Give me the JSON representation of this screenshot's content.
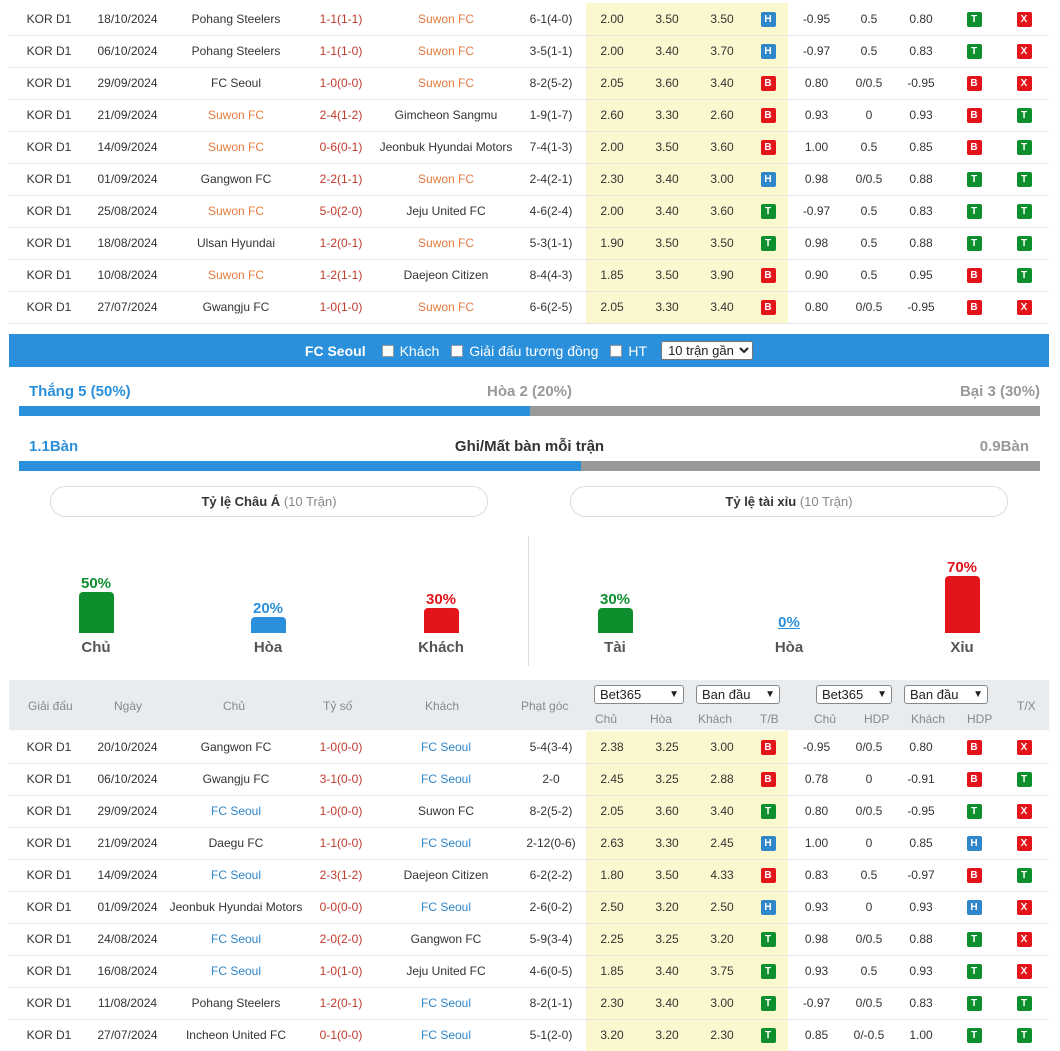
{
  "top_table": [
    {
      "league": "KOR D1",
      "date": "18/10/2024",
      "home": "Pohang Steelers",
      "score": "1-1(1-1)",
      "away": "Suwon FC",
      "corner": "6-1(4-0)",
      "o1": "2.00",
      "o2": "3.50",
      "o3": "3.50",
      "tb": "H",
      "ah1": "-0.95",
      "ah2": "0.5",
      "ah3": "0.80",
      "r1": "T",
      "r2": "X",
      "focus": "away"
    },
    {
      "league": "KOR D1",
      "date": "06/10/2024",
      "home": "Pohang Steelers",
      "score": "1-1(1-0)",
      "away": "Suwon FC",
      "corner": "3-5(1-1)",
      "o1": "2.00",
      "o2": "3.40",
      "o3": "3.70",
      "tb": "H",
      "ah1": "-0.97",
      "ah2": "0.5",
      "ah3": "0.83",
      "r1": "T",
      "r2": "X",
      "focus": "away"
    },
    {
      "league": "KOR D1",
      "date": "29/09/2024",
      "home": "FC Seoul",
      "score": "1-0(0-0)",
      "away": "Suwon FC",
      "corner": "8-2(5-2)",
      "o1": "2.05",
      "o2": "3.60",
      "o3": "3.40",
      "tb": "B",
      "ah1": "0.80",
      "ah2": "0/0.5",
      "ah3": "-0.95",
      "r1": "B",
      "r2": "X",
      "focus": "away"
    },
    {
      "league": "KOR D1",
      "date": "21/09/2024",
      "home": "Suwon FC",
      "score": "2-4(1-2)",
      "away": "Gimcheon Sangmu",
      "corner": "1-9(1-7)",
      "o1": "2.60",
      "o2": "3.30",
      "o3": "2.60",
      "tb": "B",
      "ah1": "0.93",
      "ah2": "0",
      "ah3": "0.93",
      "r1": "B",
      "r2": "T",
      "focus": "home"
    },
    {
      "league": "KOR D1",
      "date": "14/09/2024",
      "home": "Suwon FC",
      "score": "0-6(0-1)",
      "away": "Jeonbuk Hyundai Motors",
      "corner": "7-4(1-3)",
      "o1": "2.00",
      "o2": "3.50",
      "o3": "3.60",
      "tb": "B",
      "ah1": "1.00",
      "ah2": "0.5",
      "ah3": "0.85",
      "r1": "B",
      "r2": "T",
      "focus": "home"
    },
    {
      "league": "KOR D1",
      "date": "01/09/2024",
      "home": "Gangwon FC",
      "score": "2-2(1-1)",
      "away": "Suwon FC",
      "corner": "2-4(2-1)",
      "o1": "2.30",
      "o2": "3.40",
      "o3": "3.00",
      "tb": "H",
      "ah1": "0.98",
      "ah2": "0/0.5",
      "ah3": "0.88",
      "r1": "T",
      "r2": "T",
      "focus": "away"
    },
    {
      "league": "KOR D1",
      "date": "25/08/2024",
      "home": "Suwon FC",
      "score": "5-0(2-0)",
      "away": "Jeju United FC",
      "corner": "4-6(2-4)",
      "o1": "2.00",
      "o2": "3.40",
      "o3": "3.60",
      "tb": "T",
      "ah1": "-0.97",
      "ah2": "0.5",
      "ah3": "0.83",
      "r1": "T",
      "r2": "T",
      "focus": "home"
    },
    {
      "league": "KOR D1",
      "date": "18/08/2024",
      "home": "Ulsan Hyundai",
      "score": "1-2(0-1)",
      "away": "Suwon FC",
      "corner": "5-3(1-1)",
      "o1": "1.90",
      "o2": "3.50",
      "o3": "3.50",
      "tb": "T",
      "ah1": "0.98",
      "ah2": "0.5",
      "ah3": "0.88",
      "r1": "T",
      "r2": "T",
      "focus": "away"
    },
    {
      "league": "KOR D1",
      "date": "10/08/2024",
      "home": "Suwon FC",
      "score": "1-2(1-1)",
      "away": "Daejeon Citizen",
      "corner": "8-4(4-3)",
      "o1": "1.85",
      "o2": "3.50",
      "o3": "3.90",
      "tb": "B",
      "ah1": "0.90",
      "ah2": "0.5",
      "ah3": "0.95",
      "r1": "B",
      "r2": "T",
      "focus": "home"
    },
    {
      "league": "KOR D1",
      "date": "27/07/2024",
      "home": "Gwangju FC",
      "score": "1-0(1-0)",
      "away": "Suwon FC",
      "corner": "6-6(2-5)",
      "o1": "2.05",
      "o2": "3.30",
      "o3": "3.40",
      "tb": "B",
      "ah1": "0.80",
      "ah2": "0/0.5",
      "ah3": "-0.95",
      "r1": "B",
      "r2": "X",
      "focus": "away"
    }
  ],
  "filter_bar": {
    "team": "FC Seoul",
    "opt_away": "Khách",
    "opt_same_league": "Giải đấu tương đồng",
    "opt_ht": "HT",
    "select_value": "10 trận gần"
  },
  "summary": {
    "win": "Thắng 5 (50%)",
    "draw": "Hòa 2 (20%)",
    "loss": "Bại 3 (30%)",
    "win_fraction": 0.5,
    "goals_for": "1.1Bàn",
    "goals_title": "Ghi/Mất bàn mỗi trận",
    "goals_against": "0.9Bàn",
    "goals_fraction": 0.55
  },
  "pills": {
    "asian": "Tỷ lệ Châu Á",
    "asian_sub": "(10 Trận)",
    "ou": "Tỷ lệ tài xỉu",
    "ou_sub": "(10 Trận)"
  },
  "colors": {
    "green": "#0d8f2d",
    "blue": "#2a90dc",
    "red": "#e3141a"
  },
  "asian_bars": [
    {
      "pct": "50%",
      "label": "Chủ",
      "value": 50,
      "color": "green"
    },
    {
      "pct": "20%",
      "label": "Hòa",
      "value": 20,
      "color": "blue"
    },
    {
      "pct": "30%",
      "label": "Khách",
      "value": 30,
      "color": "red"
    }
  ],
  "ou_bars": [
    {
      "pct": "30%",
      "label": "Tài",
      "value": 30,
      "color": "green"
    },
    {
      "pct": "0%",
      "label": "Hòa",
      "value": 0,
      "color": "blue"
    },
    {
      "pct": "70%",
      "label": "Xỉu",
      "value": 70,
      "color": "red"
    }
  ],
  "bottom_header": {
    "league": "Giải đấu",
    "date": "Ngày",
    "home": "Chủ",
    "score": "Tỷ số",
    "away": "Khách",
    "corner": "Phạt góc",
    "sel1": "Bet365",
    "sel2": "Ban đầu",
    "sel3": "Bet365",
    "sel4": "Ban đầu",
    "c_home": "Chủ",
    "c_draw": "Hòa",
    "c_away": "Khách",
    "c_tb": "T/B",
    "c_home2": "Chủ",
    "c_hdp": "HDP",
    "c_away2": "Khách",
    "c_hdp2": "HDP",
    "c_tx": "T/X"
  },
  "bottom_table": [
    {
      "league": "KOR D1",
      "date": "20/10/2024",
      "home": "Gangwon FC",
      "score": "1-0(0-0)",
      "away": "FC Seoul",
      "corner": "5-4(3-4)",
      "o1": "2.38",
      "o2": "3.25",
      "o3": "3.00",
      "tb": "B",
      "ah1": "-0.95",
      "ah2": "0/0.5",
      "ah3": "0.80",
      "r1": "B",
      "r2": "X",
      "focus": "away"
    },
    {
      "league": "KOR D1",
      "date": "06/10/2024",
      "home": "Gwangju FC",
      "score": "3-1(0-0)",
      "away": "FC Seoul",
      "corner": "2-0",
      "o1": "2.45",
      "o2": "3.25",
      "o3": "2.88",
      "tb": "B",
      "ah1": "0.78",
      "ah2": "0",
      "ah3": "-0.91",
      "r1": "B",
      "r2": "T",
      "focus": "away"
    },
    {
      "league": "KOR D1",
      "date": "29/09/2024",
      "home": "FC Seoul",
      "score": "1-0(0-0)",
      "away": "Suwon FC",
      "corner": "8-2(5-2)",
      "o1": "2.05",
      "o2": "3.60",
      "o3": "3.40",
      "tb": "T",
      "ah1": "0.80",
      "ah2": "0/0.5",
      "ah3": "-0.95",
      "r1": "T",
      "r2": "X",
      "focus": "home"
    },
    {
      "league": "KOR D1",
      "date": "21/09/2024",
      "home": "Daegu FC",
      "score": "1-1(0-0)",
      "away": "FC Seoul",
      "corner": "2-12(0-6)",
      "o1": "2.63",
      "o2": "3.30",
      "o3": "2.45",
      "tb": "H",
      "ah1": "1.00",
      "ah2": "0",
      "ah3": "0.85",
      "r1": "H",
      "r2": "X",
      "focus": "away"
    },
    {
      "league": "KOR D1",
      "date": "14/09/2024",
      "home": "FC Seoul",
      "score": "2-3(1-2)",
      "away": "Daejeon Citizen",
      "corner": "6-2(2-2)",
      "o1": "1.80",
      "o2": "3.50",
      "o3": "4.33",
      "tb": "B",
      "ah1": "0.83",
      "ah2": "0.5",
      "ah3": "-0.97",
      "r1": "B",
      "r2": "T",
      "focus": "home"
    },
    {
      "league": "KOR D1",
      "date": "01/09/2024",
      "home": "Jeonbuk Hyundai Motors",
      "score": "0-0(0-0)",
      "away": "FC Seoul",
      "corner": "2-6(0-2)",
      "o1": "2.50",
      "o2": "3.20",
      "o3": "2.50",
      "tb": "H",
      "ah1": "0.93",
      "ah2": "0",
      "ah3": "0.93",
      "r1": "H",
      "r2": "X",
      "focus": "away"
    },
    {
      "league": "KOR D1",
      "date": "24/08/2024",
      "home": "FC Seoul",
      "score": "2-0(2-0)",
      "away": "Gangwon FC",
      "corner": "5-9(3-4)",
      "o1": "2.25",
      "o2": "3.25",
      "o3": "3.20",
      "tb": "T",
      "ah1": "0.98",
      "ah2": "0/0.5",
      "ah3": "0.88",
      "r1": "T",
      "r2": "X",
      "focus": "home"
    },
    {
      "league": "KOR D1",
      "date": "16/08/2024",
      "home": "FC Seoul",
      "score": "1-0(1-0)",
      "away": "Jeju United FC",
      "corner": "4-6(0-5)",
      "o1": "1.85",
      "o2": "3.40",
      "o3": "3.75",
      "tb": "T",
      "ah1": "0.93",
      "ah2": "0.5",
      "ah3": "0.93",
      "r1": "T",
      "r2": "X",
      "focus": "home"
    },
    {
      "league": "KOR D1",
      "date": "11/08/2024",
      "home": "Pohang Steelers",
      "score": "1-2(0-1)",
      "away": "FC Seoul",
      "corner": "8-2(1-1)",
      "o1": "2.30",
      "o2": "3.40",
      "o3": "3.00",
      "tb": "T",
      "ah1": "-0.97",
      "ah2": "0/0.5",
      "ah3": "0.83",
      "r1": "T",
      "r2": "T",
      "focus": "away"
    },
    {
      "league": "KOR D1",
      "date": "27/07/2024",
      "home": "Incheon United FC",
      "score": "0-1(0-0)",
      "away": "FC Seoul",
      "corner": "5-1(2-0)",
      "o1": "3.20",
      "o2": "3.20",
      "o3": "2.30",
      "tb": "T",
      "ah1": "0.85",
      "ah2": "0/-0.5",
      "ah3": "1.00",
      "r1": "T",
      "r2": "T",
      "focus": "away"
    }
  ]
}
